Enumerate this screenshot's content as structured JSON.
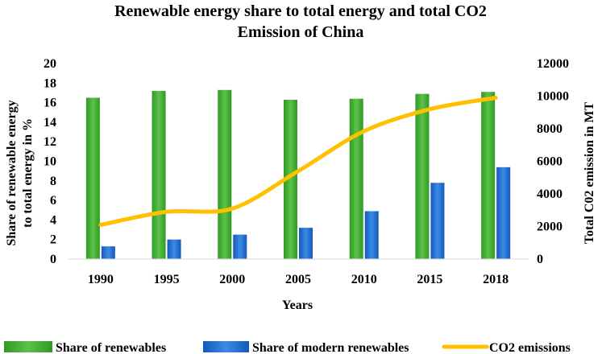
{
  "chart_data": {
    "type": "bar",
    "title_lines": [
      "Renewable energy share to total energy and total CO2",
      "Emission of China"
    ],
    "categories": [
      "1990",
      "1995",
      "2000",
      "2005",
      "2010",
      "2015",
      "2018"
    ],
    "xlabel": "Years",
    "ylabel_lines": [
      "Share of renewable energy",
      "to total energy in %"
    ],
    "y2label": "Total C02 emission in MT",
    "ylim": [
      0,
      20
    ],
    "yticks": [
      "0",
      "2",
      "4",
      "6",
      "8",
      "10",
      "12",
      "14",
      "16",
      "18",
      "20"
    ],
    "y2lim": [
      0,
      12000
    ],
    "y2ticks": [
      "0",
      "2000",
      "4000",
      "6000",
      "8000",
      "10000",
      "12000"
    ],
    "grid": false,
    "legend_position": "bottom",
    "series": [
      {
        "name": "Share of renewables",
        "type": "bar",
        "axis": "left",
        "color": "#3fae2c",
        "values": [
          16.5,
          17.2,
          17.3,
          16.3,
          16.4,
          16.9,
          17.1
        ]
      },
      {
        "name": "Share of modern renewables",
        "type": "bar",
        "axis": "left",
        "color": "#1f6fd1",
        "values": [
          1.3,
          2.0,
          2.5,
          3.2,
          4.9,
          7.8,
          9.4
        ]
      },
      {
        "name": "CO2 emissions",
        "type": "line",
        "axis": "right",
        "color": "#ffc000",
        "values": [
          2100,
          2900,
          3100,
          5400,
          7850,
          9200,
          9900
        ]
      }
    ]
  }
}
